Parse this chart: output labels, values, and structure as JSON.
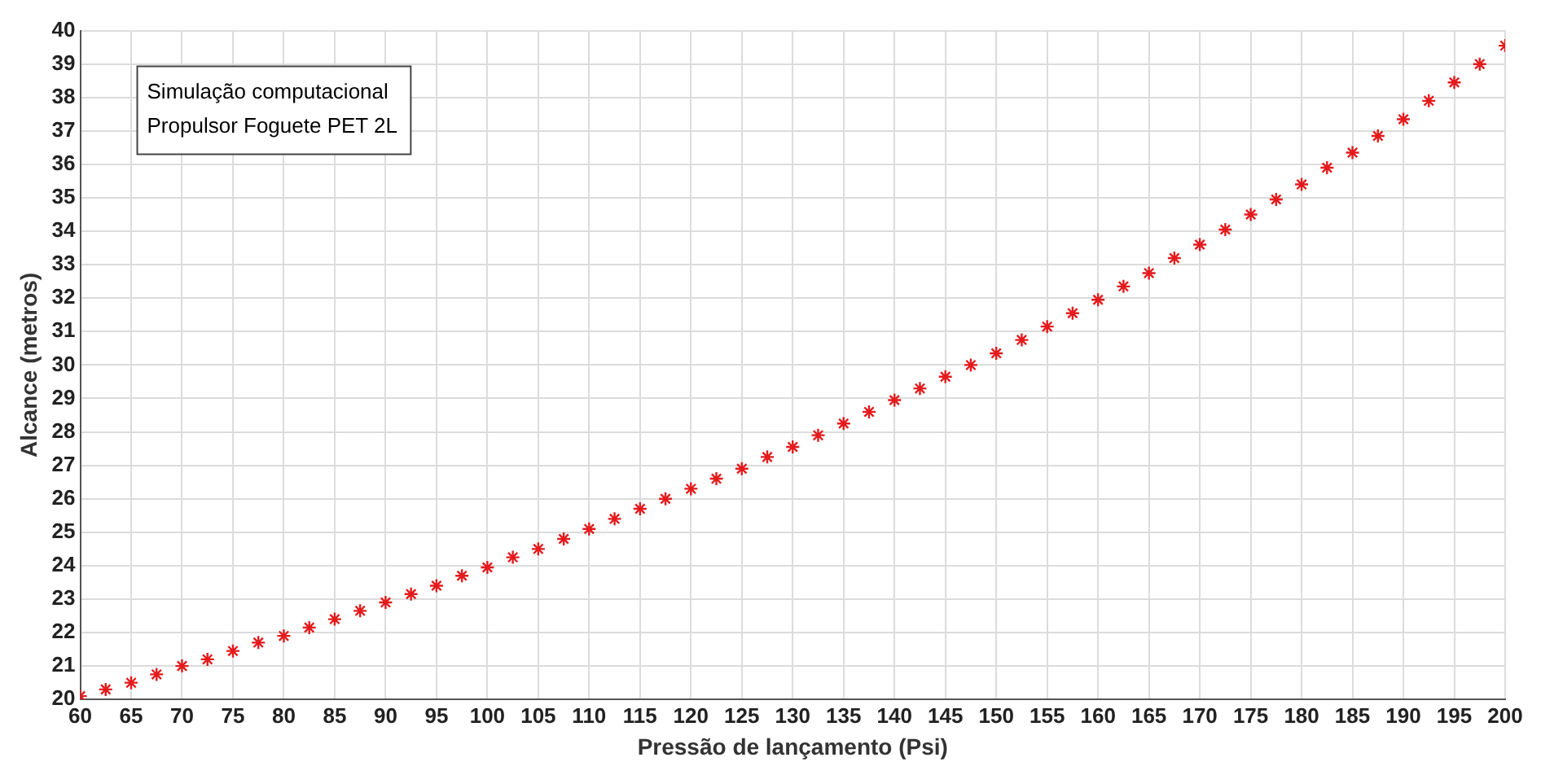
{
  "chart_data": {
    "type": "scatter",
    "xlabel": "Pressão de lançamento (Psi)",
    "ylabel": "Alcance (metros)",
    "annotations": [
      "Simulação computacional",
      "Propulsor Foguete PET 2L"
    ],
    "x": [
      60,
      62.5,
      65,
      67.5,
      70,
      72.5,
      75,
      77.5,
      80,
      82.5,
      85,
      87.5,
      90,
      92.5,
      95,
      97.5,
      100,
      102.5,
      105,
      107.5,
      110,
      112.5,
      115,
      117.5,
      120,
      122.5,
      125,
      127.5,
      130,
      132.5,
      135,
      137.5,
      140,
      142.5,
      145,
      147.5,
      150,
      152.5,
      155,
      157.5,
      160,
      162.5,
      165,
      167.5,
      170,
      172.5,
      175,
      177.5,
      180,
      182.5,
      185,
      187.5,
      190,
      192.5,
      195,
      197.5,
      200
    ],
    "series": [
      {
        "color": "#e41a1c",
        "values": [
          20.1,
          20.3,
          20.5,
          20.75,
          21.0,
          21.2,
          21.45,
          21.7,
          21.9,
          22.15,
          22.4,
          22.65,
          22.9,
          23.15,
          23.4,
          23.7,
          23.95,
          24.25,
          24.5,
          24.8,
          25.1,
          25.4,
          25.7,
          26.0,
          26.3,
          26.6,
          26.9,
          27.25,
          27.55,
          27.9,
          28.25,
          28.6,
          28.95,
          29.3,
          29.65,
          30.0,
          30.35,
          30.75,
          31.15,
          31.55,
          31.95,
          32.35,
          32.75,
          33.2,
          33.6,
          34.05,
          34.5,
          34.95,
          35.4,
          35.9,
          36.35,
          36.85,
          37.35,
          37.9,
          38.45,
          39.0,
          39.55
        ]
      }
    ],
    "xlim": [
      60,
      200
    ],
    "xticks": [
      60,
      65,
      70,
      75,
      80,
      85,
      90,
      95,
      100,
      105,
      110,
      115,
      120,
      125,
      130,
      135,
      140,
      145,
      150,
      155,
      160,
      165,
      170,
      175,
      180,
      185,
      190,
      195,
      200
    ],
    "ylim": [
      20,
      40
    ],
    "yticks": [
      20,
      21,
      22,
      23,
      24,
      25,
      26,
      27,
      28,
      29,
      30,
      31,
      32,
      33,
      34,
      35,
      36,
      37,
      38,
      39,
      40
    ],
    "grid": true,
    "marker": "cross",
    "legend": false
  }
}
